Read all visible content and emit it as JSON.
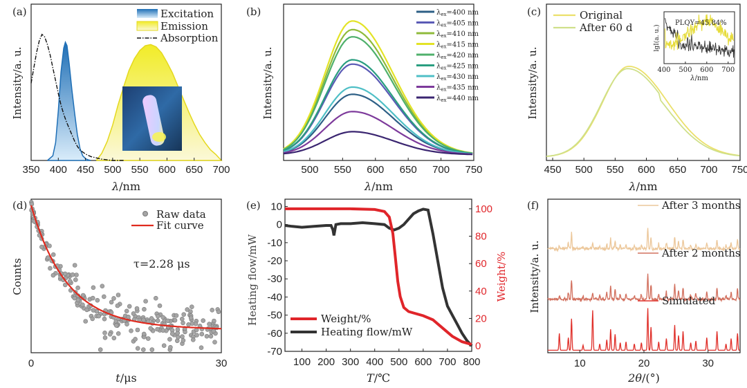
{
  "chart_data": [
    {
      "id": "a",
      "panel_label": "(a)",
      "type": "line",
      "xlabel_sym": "λ",
      "xlabel_unit": "/nm",
      "ylabel": "Intensity/a. u.",
      "xlim": [
        350,
        700
      ],
      "ylim": [
        0,
        1
      ],
      "xticks": [
        350,
        400,
        450,
        500,
        550,
        600,
        650,
        700
      ],
      "legend_position": "top-right",
      "series": [
        {
          "name": "Excitation",
          "style": "area",
          "color": "#2f85c8",
          "x": [
            380,
            390,
            395,
            400,
            405,
            410,
            413,
            416,
            420,
            425,
            430,
            435,
            440,
            445,
            450,
            455,
            460
          ],
          "y": [
            0.0,
            0.04,
            0.15,
            0.42,
            0.75,
            0.95,
            1.0,
            0.97,
            0.82,
            0.6,
            0.4,
            0.22,
            0.1,
            0.04,
            0.015,
            0.005,
            0.0
          ]
        },
        {
          "name": "Emission",
          "style": "area",
          "color": "#ece832",
          "x": [
            470,
            480,
            490,
            500,
            510,
            520,
            530,
            540,
            550,
            560,
            570,
            580,
            590,
            600,
            610,
            620,
            630,
            640,
            650,
            660,
            670,
            680,
            690,
            700
          ],
          "y": [
            0.0,
            0.06,
            0.16,
            0.3,
            0.47,
            0.62,
            0.76,
            0.86,
            0.93,
            0.97,
            0.98,
            0.96,
            0.91,
            0.83,
            0.74,
            0.63,
            0.52,
            0.41,
            0.31,
            0.22,
            0.15,
            0.09,
            0.05,
            0.0
          ]
        },
        {
          "name": "Absorption",
          "style": "dashdot",
          "color": "#111111",
          "x": [
            350,
            355,
            360,
            365,
            370,
            375,
            380,
            385,
            390,
            395,
            400,
            405,
            410,
            415,
            420,
            425,
            430,
            435,
            440,
            450,
            460,
            470,
            480,
            490,
            500,
            520
          ],
          "y": [
            0.6,
            0.72,
            0.84,
            0.93,
            0.98,
            0.96,
            0.9,
            0.82,
            0.72,
            0.62,
            0.52,
            0.43,
            0.36,
            0.3,
            0.25,
            0.2,
            0.15,
            0.11,
            0.08,
            0.05,
            0.03,
            0.02,
            0.01,
            0.005,
            0.0,
            0.0
          ]
        }
      ]
    },
    {
      "id": "b",
      "panel_label": "(b)",
      "type": "line",
      "xlabel_sym": "λ",
      "xlabel_unit": "/nm",
      "ylabel": "Intensity/a. u.",
      "xlim": [
        460,
        750
      ],
      "ylim": [
        0,
        1
      ],
      "xticks": [
        500,
        550,
        600,
        650,
        700,
        750
      ],
      "legend_position": "top-right",
      "peak_nm": 565,
      "series": [
        {
          "name": "λex=400 nm",
          "sub": "ex",
          "suffix": "=400 nm",
          "color": "#2d5f86",
          "peak": 0.46
        },
        {
          "name": "λex=405 nm",
          "sub": "ex",
          "suffix": "=405 nm",
          "color": "#5a5ab5",
          "peak": 0.67
        },
        {
          "name": "λex=410 nm",
          "sub": "ex",
          "suffix": "=410 nm",
          "color": "#8fba3b",
          "peak": 0.91
        },
        {
          "name": "λex=415 nm",
          "sub": "ex",
          "suffix": "=415 nm",
          "color": "#e3e326",
          "peak": 0.97
        },
        {
          "name": "λex=420 nm",
          "sub": "ex",
          "suffix": "=420 nm",
          "color": "#4fb06b",
          "peak": 0.86
        },
        {
          "name": "λex=425 nm",
          "sub": "ex",
          "suffix": "=425 nm",
          "color": "#2a9e80",
          "peak": 0.7
        },
        {
          "name": "λex=430 nm",
          "sub": "ex",
          "suffix": "=430 nm",
          "color": "#4fbfc6",
          "peak": 0.51
        },
        {
          "name": "λex=435 nm",
          "sub": "ex",
          "suffix": "=435 nm",
          "color": "#7d3a9b",
          "peak": 0.34
        },
        {
          "name": "λex=440 nm",
          "sub": "ex",
          "suffix": "=440 nm",
          "color": "#3a2570",
          "peak": 0.2
        }
      ]
    },
    {
      "id": "c",
      "panel_label": "(c)",
      "type": "line",
      "xlabel_sym": "λ",
      "xlabel_unit": "/nm",
      "ylabel": "Intensity/a. u.",
      "xlim": [
        440,
        750
      ],
      "ylim": [
        0,
        1
      ],
      "xticks": [
        450,
        500,
        550,
        600,
        650,
        700,
        750
      ],
      "legend_position": "top-left",
      "series": [
        {
          "name": "Original",
          "color": "#ebe06a",
          "peak_nm": 572,
          "peak": 0.82
        },
        {
          "name": "After 60 d",
          "color": "#cfe08a",
          "peak_nm": 570,
          "peak": 0.8
        }
      ],
      "inset": {
        "annotation": "PLQY=45.84%",
        "xlabel_sym": "λ",
        "xlabel_unit": "/nm",
        "ylabel": "lgI(a. u.)",
        "xticks": [
          400,
          500,
          600,
          700
        ],
        "xlim": [
          400,
          730
        ]
      }
    },
    {
      "id": "d",
      "panel_label": "(d)",
      "type": "scatter",
      "xlabel_sym": "t",
      "xlabel_unit": "/μs",
      "ylabel": "Counts",
      "xlim": [
        0,
        30
      ],
      "ylim": [
        0,
        1
      ],
      "xticks": [
        0,
        30
      ],
      "legend_position": "top-right",
      "annotation": "τ=2.28 μs",
      "tau_us": 2.28,
      "series": [
        {
          "name": "Raw data",
          "color": "#9a9a9a"
        },
        {
          "name": "Fit curve",
          "color": "#e02a1e"
        }
      ]
    },
    {
      "id": "e",
      "panel_label": "(e)",
      "type": "line",
      "xlabel_sym": "T",
      "xlabel_unit": "/℃",
      "ylabel": "Heating flow/mW",
      "ylabel2": "Weight/%",
      "xlim": [
        30,
        800
      ],
      "ylim": [
        -70,
        14
      ],
      "ylim2": [
        -4,
        107
      ],
      "xticks": [
        100,
        200,
        300,
        400,
        500,
        600,
        700,
        800
      ],
      "yticks": [
        10,
        0,
        -10,
        -20,
        -30,
        -40,
        -50,
        -60,
        -70
      ],
      "yticks2": [
        100,
        80,
        60,
        40,
        20,
        0
      ],
      "legend_position": "bottom-left",
      "series": [
        {
          "name": "Weight/%",
          "axis": "right",
          "color": "#e0252a",
          "x": [
            30,
            100,
            200,
            300,
            400,
            440,
            460,
            475,
            485,
            495,
            505,
            520,
            540,
            560,
            600,
            640,
            680,
            720,
            760,
            800
          ],
          "y": [
            100,
            100,
            100,
            100,
            99.5,
            98,
            94,
            82,
            65,
            47,
            36,
            28,
            25,
            24,
            22,
            19,
            13,
            7,
            3,
            1
          ]
        },
        {
          "name": "Heating flow/mW",
          "axis": "left",
          "color": "#333333",
          "x": [
            30,
            60,
            100,
            150,
            200,
            220,
            228,
            232,
            236,
            240,
            260,
            300,
            350,
            400,
            440,
            460,
            480,
            500,
            520,
            540,
            560,
            580,
            600,
            620,
            640,
            660,
            680,
            700,
            720,
            740,
            760,
            780,
            800
          ],
          "y": [
            -0.5,
            -1,
            -1.5,
            -1,
            -0.5,
            -0.5,
            -3,
            -6,
            -3,
            0,
            0.5,
            0.5,
            1,
            0.5,
            0,
            -2,
            -3,
            -2,
            0,
            3,
            6,
            7.5,
            8.5,
            8,
            -5,
            -20,
            -35,
            -45,
            -50,
            -55,
            -60,
            -64,
            -67
          ]
        }
      ]
    },
    {
      "id": "f",
      "panel_label": "(f)",
      "type": "line",
      "xlabel_sym": "2θ",
      "xlabel_unit": "/(°)",
      "ylabel": "Intensity/a. u.",
      "xlim": [
        5,
        35
      ],
      "ylim": [
        0,
        3.1
      ],
      "xticks": [
        10,
        20,
        30
      ],
      "legend_position": "inline",
      "peaks_2theta": [
        6.8,
        8.2,
        8.7,
        10.5,
        12.0,
        13.1,
        14.2,
        14.8,
        15.5,
        16.3,
        17.2,
        18.5,
        19.6,
        20.6,
        21.1,
        22.3,
        23.5,
        24.8,
        25.4,
        26.1,
        27.3,
        28.1,
        29.8,
        31.4,
        32.8,
        33.6,
        34.6
      ],
      "peak_heights": [
        0.4,
        0.3,
        0.75,
        0.12,
        0.95,
        0.15,
        0.25,
        0.5,
        0.38,
        0.18,
        0.2,
        0.15,
        0.18,
        1.0,
        0.55,
        0.2,
        0.28,
        0.6,
        0.35,
        0.45,
        0.18,
        0.22,
        0.3,
        0.45,
        0.15,
        0.28,
        0.4
      ],
      "series": [
        {
          "name": "Simulated",
          "color": "#e0302a"
        },
        {
          "name": "After 2 months",
          "color": "#d2705e"
        },
        {
          "name": "After 3 months",
          "color": "#ecc79a"
        }
      ]
    }
  ]
}
